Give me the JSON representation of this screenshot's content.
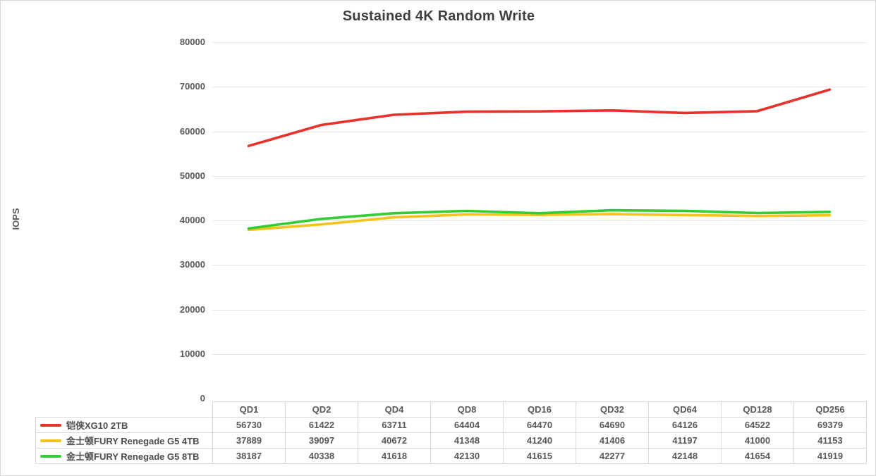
{
  "title": "Sustained 4K Random Write",
  "chart_data": {
    "type": "line",
    "title": "Sustained 4K Random Write",
    "xlabel": "",
    "ylabel": "IOPS",
    "ylim": [
      0,
      80000
    ],
    "ytick_interval": 10000,
    "yticks": [
      "80000",
      "70000",
      "60000",
      "50000",
      "40000",
      "30000",
      "20000",
      "10000",
      "0"
    ],
    "grid": true,
    "legend_position": "table-left",
    "categories": [
      "QD1",
      "QD2",
      "QD4",
      "QD8",
      "QD16",
      "QD32",
      "QD64",
      "QD128",
      "QD256"
    ],
    "series": [
      {
        "name": "铠侠XG10 2TB",
        "color": "#e9312b",
        "values": [
          56730,
          61422,
          63711,
          64404,
          64470,
          64690,
          64126,
          64522,
          69379
        ]
      },
      {
        "name": "金士顿FURY Renegade G5 4TB",
        "color": "#f4c41b",
        "values": [
          37889,
          39097,
          40672,
          41348,
          41240,
          41406,
          41197,
          41000,
          41153
        ]
      },
      {
        "name": "金士顿FURY Renegade G5 8TB",
        "color": "#33cc33",
        "values": [
          38187,
          40338,
          41618,
          42130,
          41615,
          42277,
          42148,
          41654,
          41919
        ]
      }
    ],
    "colors": {
      "gridline": "#e5e5e5",
      "table_border": "#d9d9d9",
      "axis_text": "#595959",
      "title_text": "#3f3f3f"
    }
  }
}
